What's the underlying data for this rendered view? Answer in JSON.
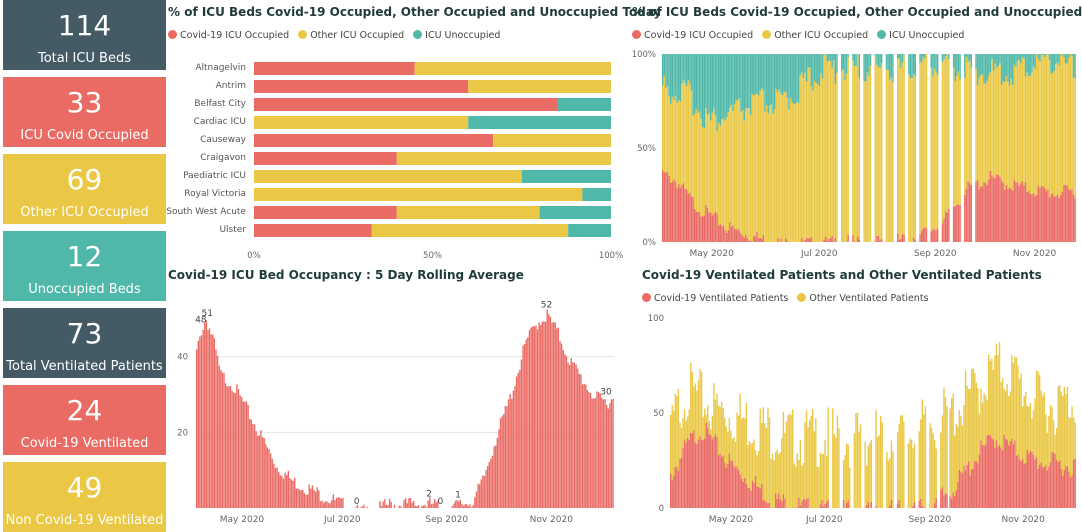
{
  "colors": {
    "covid": "#ea6a64",
    "other": "#eac845",
    "unocc": "#4fb8a8",
    "dark": "#445b66"
  },
  "cards": [
    {
      "value": "114",
      "label": "Total ICU Beds",
      "color": "#445b66"
    },
    {
      "value": "33",
      "label": "ICU Covid Occupied",
      "color": "#ea6a64"
    },
    {
      "value": "69",
      "label": "Other ICU Occupied",
      "color": "#eac845"
    },
    {
      "value": "12",
      "label": "Unoccupied Beds",
      "color": "#4fb8a8"
    },
    {
      "value": "73",
      "label": "Total Ventilated Patients",
      "color": "#445b66"
    },
    {
      "value": "24",
      "label": "Covid-19 Ventilated",
      "color": "#ea6a64"
    },
    {
      "value": "49",
      "label": "Non Covid-19 Ventilated",
      "color": "#eac845"
    }
  ],
  "panels": {
    "today": {
      "title": "% of ICU Beds Covid-19 Occupied, Other Occupied and Unoccupied Today",
      "legend": [
        "Covid-19 ICU Occupied",
        "Other ICU Occupied",
        "ICU Unoccupied"
      ]
    },
    "trend": {
      "title": "% of ICU Beds Covid-19 Occupied, Other Occupied and Unoccupied",
      "legend": [
        "Covid-19 ICU Occupied",
        "Other ICU Occupied",
        "ICU Unoccupied"
      ]
    },
    "rolling": {
      "title": "Covid-19 ICU Bed Occupancy : 5 Day Rolling Average"
    },
    "vent": {
      "title": "Covid-19 Ventilated Patients and Other Ventilated Patients",
      "legend": [
        "Covid-19 Ventilated Patients",
        "Other Ventilated Patients"
      ]
    }
  },
  "chart_data": [
    {
      "type": "bar",
      "orientation": "horizontal",
      "stacked": "100%",
      "title": "% of ICU Beds Covid-19 Occupied, Other Occupied and Unoccupied Today",
      "categories": [
        "Altnagelvin",
        "Antrim",
        "Belfast City",
        "Cardiac ICU",
        "Causeway",
        "Craigavon",
        "Paediatric ICU",
        "Royal Victoria",
        "South West Acute",
        "Ulster"
      ],
      "series": [
        {
          "name": "Covid-19 ICU Occupied",
          "values": [
            45,
            60,
            85,
            0,
            67,
            40,
            0,
            0,
            40,
            33
          ]
        },
        {
          "name": "Other ICU Occupied",
          "values": [
            55,
            40,
            0,
            60,
            33,
            60,
            75,
            92,
            40,
            55
          ]
        },
        {
          "name": "ICU Unoccupied",
          "values": [
            0,
            0,
            15,
            40,
            0,
            0,
            25,
            8,
            20,
            12
          ]
        }
      ],
      "xticks": [
        "0%",
        "50%",
        "100%"
      ],
      "xlim": [
        0,
        100
      ]
    },
    {
      "type": "bar",
      "stacked": "100%",
      "title": "% of ICU Beds Covid-19 Occupied, Other Occupied and Unoccupied",
      "x_ticks": [
        "May 2020",
        "Jul 2020",
        "Sep 2020",
        "Nov 2020"
      ],
      "yticks": [
        "0%",
        "50%",
        "100%"
      ],
      "covid_pct_keypoints": [
        [
          0,
          38
        ],
        [
          8,
          35
        ],
        [
          20,
          22
        ],
        [
          40,
          10
        ],
        [
          60,
          4
        ],
        [
          75,
          1
        ],
        [
          95,
          1
        ],
        [
          120,
          2
        ],
        [
          140,
          2
        ],
        [
          160,
          5
        ],
        [
          175,
          12
        ],
        [
          190,
          30
        ],
        [
          205,
          36
        ],
        [
          215,
          33
        ],
        [
          230,
          30
        ],
        [
          245,
          28
        ],
        [
          258,
          29
        ]
      ],
      "unocc_pct_keypoints": [
        [
          0,
          22
        ],
        [
          15,
          25
        ],
        [
          30,
          40
        ],
        [
          45,
          35
        ],
        [
          60,
          30
        ],
        [
          75,
          30
        ],
        [
          100,
          12
        ],
        [
          120,
          12
        ],
        [
          150,
          12
        ],
        [
          170,
          8
        ],
        [
          190,
          12
        ],
        [
          215,
          15
        ],
        [
          230,
          10
        ],
        [
          245,
          6
        ],
        [
          258,
          12
        ]
      ],
      "gap_pattern_start": 105,
      "gap_pattern_end": 196,
      "days": 259
    },
    {
      "type": "bar",
      "title": "Covid-19 ICU Bed Occupancy : 5 Day Rolling Average",
      "x_ticks": [
        "May 2020",
        "Jul 2020",
        "Sep 2020",
        "Nov 2020"
      ],
      "yticks": [
        "20",
        "40"
      ],
      "ylim": [
        0,
        55
      ],
      "keypoints": [
        [
          0,
          42
        ],
        [
          3,
          48
        ],
        [
          6,
          51
        ],
        [
          10,
          46
        ],
        [
          15,
          36
        ],
        [
          22,
          34
        ],
        [
          30,
          28
        ],
        [
          40,
          20
        ],
        [
          50,
          12
        ],
        [
          60,
          8
        ],
        [
          70,
          6
        ],
        [
          80,
          4
        ],
        [
          90,
          2
        ],
        [
          100,
          0
        ],
        [
          110,
          0
        ],
        [
          120,
          2
        ],
        [
          130,
          2
        ],
        [
          140,
          2
        ],
        [
          148,
          2
        ],
        [
          152,
          0
        ],
        [
          158,
          1
        ],
        [
          165,
          2
        ],
        [
          172,
          3
        ],
        [
          178,
          8
        ],
        [
          185,
          18
        ],
        [
          195,
          30
        ],
        [
          205,
          45
        ],
        [
          212,
          50
        ],
        [
          218,
          52
        ],
        [
          225,
          47
        ],
        [
          232,
          40
        ],
        [
          240,
          35
        ],
        [
          248,
          30
        ],
        [
          255,
          29
        ],
        [
          259,
          30
        ]
      ],
      "labels": [
        {
          "x": 3,
          "text": "48"
        },
        {
          "x": 7,
          "text": "51"
        },
        {
          "x": 100,
          "text": "0"
        },
        {
          "x": 145,
          "text": "2"
        },
        {
          "x": 152,
          "text": "0"
        },
        {
          "x": 163,
          "text": "1"
        },
        {
          "x": 218,
          "text": "52"
        },
        {
          "x": 255,
          "text": "30"
        }
      ],
      "days": 260
    },
    {
      "type": "bar",
      "stacked": true,
      "title": "Covid-19 Ventilated Patients and Other Ventilated Patients",
      "x_ticks": [
        "May 2020",
        "Jul 2020",
        "Sep 2020",
        "Nov 2020"
      ],
      "yticks": [
        "0",
        "50",
        "100"
      ],
      "ylim": [
        0,
        100
      ],
      "covid_keypoints": [
        [
          0,
          20
        ],
        [
          10,
          35
        ],
        [
          20,
          45
        ],
        [
          30,
          35
        ],
        [
          40,
          25
        ],
        [
          55,
          15
        ],
        [
          65,
          8
        ],
        [
          80,
          4
        ],
        [
          95,
          2
        ],
        [
          120,
          1
        ],
        [
          150,
          2
        ],
        [
          170,
          5
        ],
        [
          185,
          15
        ],
        [
          200,
          32
        ],
        [
          210,
          40
        ],
        [
          220,
          35
        ],
        [
          235,
          28
        ],
        [
          260,
          25
        ]
      ],
      "total_keypoints": [
        [
          0,
          50
        ],
        [
          10,
          70
        ],
        [
          20,
          65
        ],
        [
          30,
          60
        ],
        [
          45,
          55
        ],
        [
          60,
          50
        ],
        [
          75,
          45
        ],
        [
          90,
          45
        ],
        [
          120,
          45
        ],
        [
          150,
          45
        ],
        [
          170,
          52
        ],
        [
          185,
          60
        ],
        [
          200,
          72
        ],
        [
          212,
          82
        ],
        [
          222,
          78
        ],
        [
          235,
          65
        ],
        [
          250,
          62
        ],
        [
          262,
          65
        ]
      ],
      "gap_pattern_start": 98,
      "gap_pattern_end": 180,
      "days": 263
    }
  ]
}
